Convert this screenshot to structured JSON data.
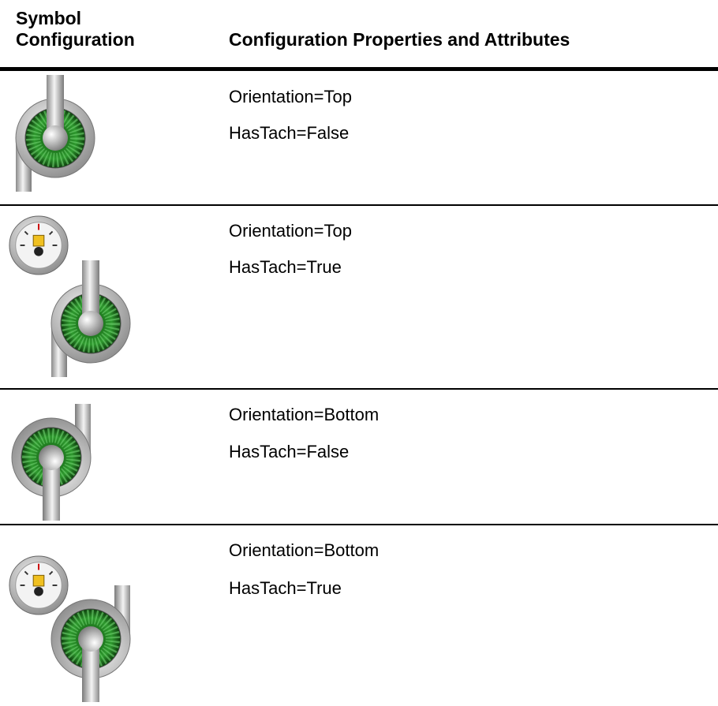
{
  "header": {
    "symbol_column": "Symbol Configuration",
    "properties_column": "Configuration Properties and Attributes"
  },
  "rows": [
    {
      "properties": [
        "Orientation=Top",
        "HasTach=False"
      ]
    },
    {
      "properties": [
        "Orientation=Top",
        "HasTach=True"
      ]
    },
    {
      "properties": [
        "Orientation=Bottom",
        "HasTach=False"
      ]
    },
    {
      "properties": [
        "Orientation=Bottom",
        "HasTach=True"
      ]
    }
  ]
}
